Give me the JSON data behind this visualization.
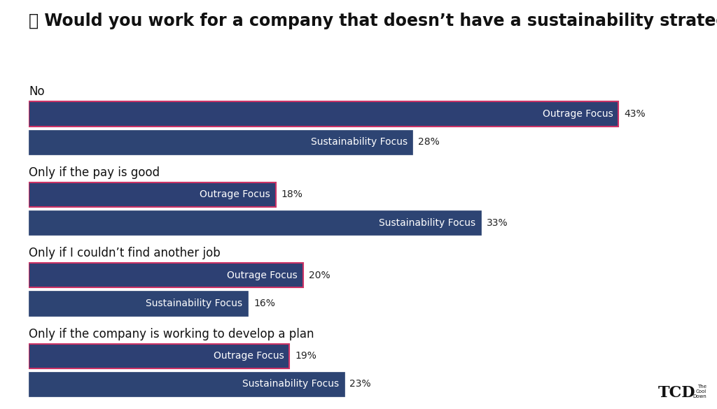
{
  "title": "🧱 Would you work for a company that doesn’t have a sustainability strategy?",
  "title_fontsize": 17,
  "background_color": "#ffffff",
  "bar_color_outrage": "#2d4073",
  "bar_color_sustainability": "#2d4473",
  "bar_border_outrage": "#cc3366",
  "categories": [
    "No",
    "Only if the pay is good",
    "Only if I couldn’t find another job",
    "Only if the company is working to develop a plan"
  ],
  "outrage_values": [
    43,
    18,
    20,
    19
  ],
  "sustainability_values": [
    28,
    33,
    16,
    23
  ],
  "xlim": [
    0,
    46
  ],
  "text_color_label": "#ffffff",
  "label_fontsize": 10,
  "category_fontsize": 12,
  "pct_fontsize": 10
}
